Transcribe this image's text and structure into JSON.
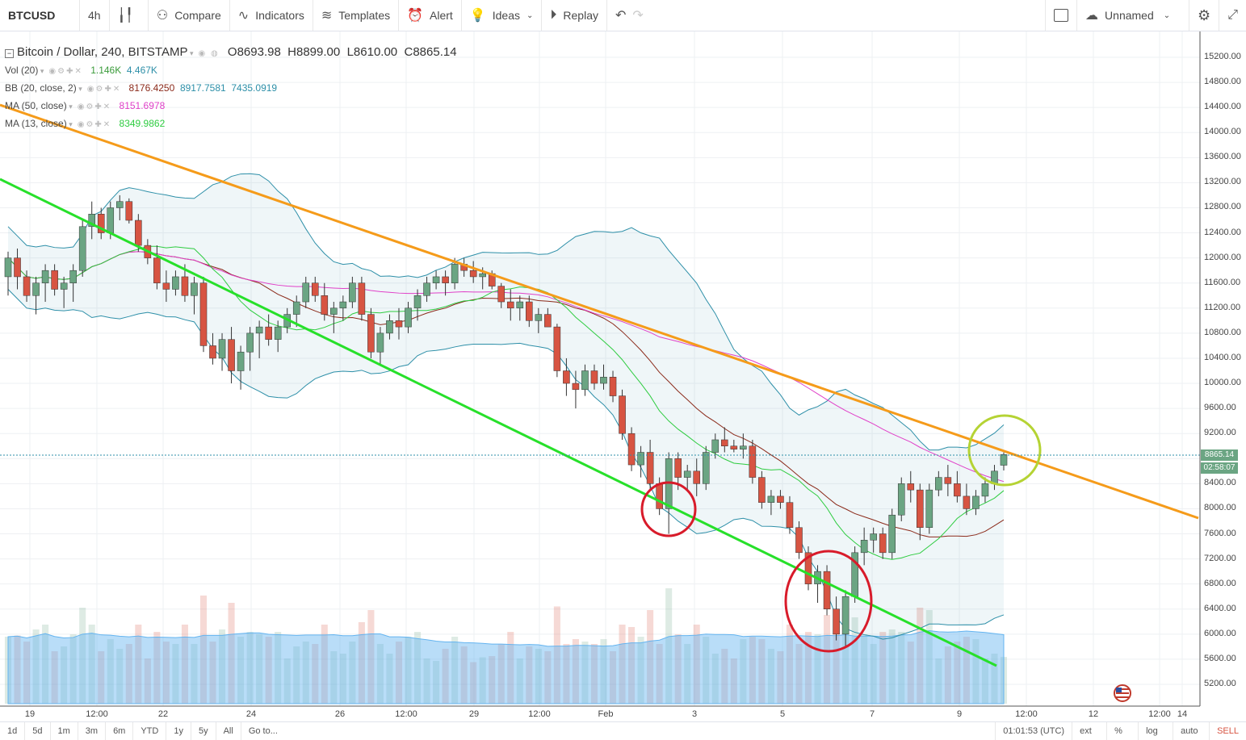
{
  "toolbar": {
    "symbol": "BTCUSD",
    "interval": "4h",
    "compare": "Compare",
    "indicators": "Indicators",
    "templates": "Templates",
    "alert": "Alert",
    "ideas": "Ideas",
    "replay": "Replay",
    "layout_name": "Unnamed"
  },
  "legend": {
    "title": "Bitcoin / Dollar, 240, BITSTAMP",
    "o_label": "O",
    "o": "8693.98",
    "h_label": "H",
    "h": "8899.00",
    "l_label": "L",
    "l": "8610.00",
    "c_label": "C",
    "c": "8865.14",
    "vol_name": "Vol (20)",
    "vol_v1": "1.146K",
    "vol_v2": "4.467K",
    "bb_name": "BB (20, close, 2)",
    "bb_mid": "8176.4250",
    "bb_up": "8917.7581",
    "bb_low": "7435.0919",
    "ma50_name": "MA (50, close)",
    "ma50": "8151.6978",
    "ma13_name": "MA (13, close)",
    "ma13": "8349.9862"
  },
  "price_axis": {
    "ticks": [
      "15200.00",
      "14800.00",
      "14400.00",
      "14000.00",
      "13600.00",
      "13200.00",
      "12800.00",
      "12400.00",
      "12000.00",
      "11600.00",
      "11200.00",
      "10800.00",
      "10400.00",
      "10000.00",
      "9600.00",
      "9200.00",
      "8800.00",
      "8400.00",
      "8000.00",
      "7600.00",
      "7200.00",
      "6800.00",
      "6400.00",
      "6000.00",
      "5600.00",
      "5200.00"
    ],
    "last_price": "8865.14",
    "countdown": "02:58:07"
  },
  "time_axis": {
    "ticks": [
      "19",
      "12:00",
      "22",
      "24",
      "26",
      "12:00",
      "29",
      "12:00",
      "Feb",
      "3",
      "5",
      "7",
      "9",
      "12:00",
      "12",
      "12:00",
      "14"
    ]
  },
  "bottom": {
    "ranges": [
      "1d",
      "5d",
      "1m",
      "3m",
      "6m",
      "YTD",
      "1y",
      "5y",
      "All"
    ],
    "goto": "Go to...",
    "clock": "01:01:53 (UTC)",
    "ext": "ext",
    "pct": "%",
    "log": "log",
    "auto": "auto",
    "sell": "SELL"
  },
  "colors": {
    "up": "#6ba583",
    "down": "#d75442",
    "orange": "#f59b1a",
    "green_line": "#27e02a",
    "bb": "#2d8fa8",
    "ma50": "#e040c8",
    "ma13": "#2ecc40",
    "red_circle": "#d81b2a",
    "yellow_circle": "#b5d334"
  },
  "chart_data": {
    "type": "candlestick",
    "symbol": "BTCUSD",
    "ohlc_last": {
      "open": 8693.98,
      "high": 8899.0,
      "low": 8610.0,
      "close": 8865.14
    },
    "ylim": [
      5000,
      15400
    ],
    "candles": [
      [
        11700,
        12100,
        11400,
        12000
      ],
      [
        12000,
        12150,
        11500,
        11700
      ],
      [
        11700,
        11800,
        11300,
        11400
      ],
      [
        11400,
        11700,
        11100,
        11600
      ],
      [
        11600,
        11900,
        11300,
        11800
      ],
      [
        11800,
        11900,
        11400,
        11500
      ],
      [
        11500,
        11700,
        11200,
        11600
      ],
      [
        11600,
        11900,
        11300,
        11800
      ],
      [
        11800,
        12600,
        11700,
        12500
      ],
      [
        12500,
        12900,
        12300,
        12700
      ],
      [
        12700,
        12800,
        12300,
        12400
      ],
      [
        12400,
        12900,
        12300,
        12800
      ],
      [
        12800,
        13000,
        12600,
        12900
      ],
      [
        12900,
        12950,
        12550,
        12600
      ],
      [
        12600,
        12700,
        12100,
        12200
      ],
      [
        12200,
        12300,
        11900,
        12000
      ],
      [
        12000,
        12200,
        11500,
        11600
      ],
      [
        11600,
        11800,
        11300,
        11500
      ],
      [
        11500,
        11800,
        11400,
        11700
      ],
      [
        11700,
        11900,
        11300,
        11400
      ],
      [
        11400,
        11700,
        11100,
        11600
      ],
      [
        11600,
        11700,
        10500,
        10600
      ],
      [
        10600,
        10800,
        10300,
        10400
      ],
      [
        10400,
        10800,
        10200,
        10700
      ],
      [
        10700,
        10900,
        10000,
        10200
      ],
      [
        10200,
        10600,
        9900,
        10500
      ],
      [
        10500,
        10900,
        10200,
        10800
      ],
      [
        10800,
        11000,
        10400,
        10900
      ],
      [
        10900,
        11100,
        10600,
        10700
      ],
      [
        10700,
        11000,
        10500,
        10900
      ],
      [
        10900,
        11200,
        10800,
        11100
      ],
      [
        11100,
        11400,
        10900,
        11300
      ],
      [
        11300,
        11700,
        11200,
        11600
      ],
      [
        11600,
        11700,
        11300,
        11400
      ],
      [
        11400,
        11600,
        11000,
        11100
      ],
      [
        11100,
        11300,
        10800,
        11200
      ],
      [
        11200,
        11400,
        11000,
        11300
      ],
      [
        11300,
        11700,
        11200,
        11600
      ],
      [
        11600,
        11700,
        11000,
        11100
      ],
      [
        11100,
        11200,
        10400,
        10500
      ],
      [
        10500,
        10900,
        10300,
        10800
      ],
      [
        10800,
        11100,
        10700,
        11000
      ],
      [
        11000,
        11200,
        10700,
        10900
      ],
      [
        10900,
        11300,
        10800,
        11200
      ],
      [
        11200,
        11500,
        11000,
        11400
      ],
      [
        11400,
        11700,
        11300,
        11600
      ],
      [
        11600,
        11800,
        11500,
        11700
      ],
      [
        11700,
        11800,
        11400,
        11600
      ],
      [
        11600,
        12000,
        11500,
        11900
      ],
      [
        11900,
        12000,
        11700,
        11800
      ],
      [
        11800,
        11950,
        11600,
        11700
      ],
      [
        11700,
        11850,
        11500,
        11750
      ],
      [
        11750,
        11800,
        11500,
        11550
      ],
      [
        11550,
        11600,
        11200,
        11300
      ],
      [
        11300,
        11500,
        11000,
        11200
      ],
      [
        11200,
        11400,
        11000,
        11300
      ],
      [
        11300,
        11400,
        10900,
        11000
      ],
      [
        11000,
        11200,
        10800,
        11100
      ],
      [
        11100,
        11200,
        10900,
        10900
      ],
      [
        10900,
        10950,
        10100,
        10200
      ],
      [
        10200,
        10400,
        9800,
        10000
      ],
      [
        10000,
        10200,
        9600,
        9900
      ],
      [
        9900,
        10300,
        9800,
        10200
      ],
      [
        10200,
        10300,
        9900,
        10000
      ],
      [
        10000,
        10300,
        9900,
        10100
      ],
      [
        10100,
        10200,
        9700,
        9800
      ],
      [
        9800,
        9900,
        9100,
        9200
      ],
      [
        9200,
        9300,
        8600,
        8700
      ],
      [
        8700,
        9000,
        8500,
        8900
      ],
      [
        8900,
        9100,
        8300,
        8400
      ],
      [
        8400,
        8500,
        7900,
        8000
      ],
      [
        8000,
        8900,
        7600,
        8800
      ],
      [
        8800,
        8900,
        8300,
        8500
      ],
      [
        8500,
        8700,
        8300,
        8600
      ],
      [
        8600,
        8800,
        8200,
        8400
      ],
      [
        8400,
        9000,
        8300,
        8900
      ],
      [
        8900,
        9200,
        8800,
        9100
      ],
      [
        9100,
        9300,
        8900,
        9000
      ],
      [
        9000,
        9100,
        8900,
        8950
      ],
      [
        8950,
        9200,
        8800,
        9000
      ],
      [
        9000,
        9100,
        8400,
        8500
      ],
      [
        8500,
        8600,
        8000,
        8100
      ],
      [
        8100,
        8300,
        7900,
        8200
      ],
      [
        8200,
        8300,
        8000,
        8100
      ],
      [
        8100,
        8200,
        7600,
        7700
      ],
      [
        7700,
        7800,
        7200,
        7300
      ],
      [
        7300,
        7400,
        6700,
        6800
      ],
      [
        6800,
        7100,
        6500,
        7000
      ],
      [
        7000,
        7100,
        6300,
        6400
      ],
      [
        6400,
        6600,
        5900,
        6000
      ],
      [
        6000,
        6700,
        5800,
        6600
      ],
      [
        6600,
        7400,
        6500,
        7300
      ],
      [
        7300,
        7700,
        7100,
        7500
      ],
      [
        7500,
        7700,
        7300,
        7600
      ],
      [
        7600,
        7700,
        7200,
        7300
      ],
      [
        7300,
        8000,
        7200,
        7900
      ],
      [
        7900,
        8500,
        7800,
        8400
      ],
      [
        8400,
        8600,
        8100,
        8300
      ],
      [
        8300,
        8400,
        7500,
        7700
      ],
      [
        7700,
        8400,
        7600,
        8300
      ],
      [
        8300,
        8600,
        8200,
        8500
      ],
      [
        8500,
        8700,
        8200,
        8400
      ],
      [
        8400,
        8600,
        8100,
        8200
      ],
      [
        8200,
        8400,
        7900,
        8000
      ],
      [
        8000,
        8300,
        7900,
        8200
      ],
      [
        8200,
        8500,
        8100,
        8400
      ],
      [
        8400,
        8700,
        8300,
        8600
      ],
      [
        8693.98,
        8899,
        8610,
        8865.14
      ]
    ]
  }
}
